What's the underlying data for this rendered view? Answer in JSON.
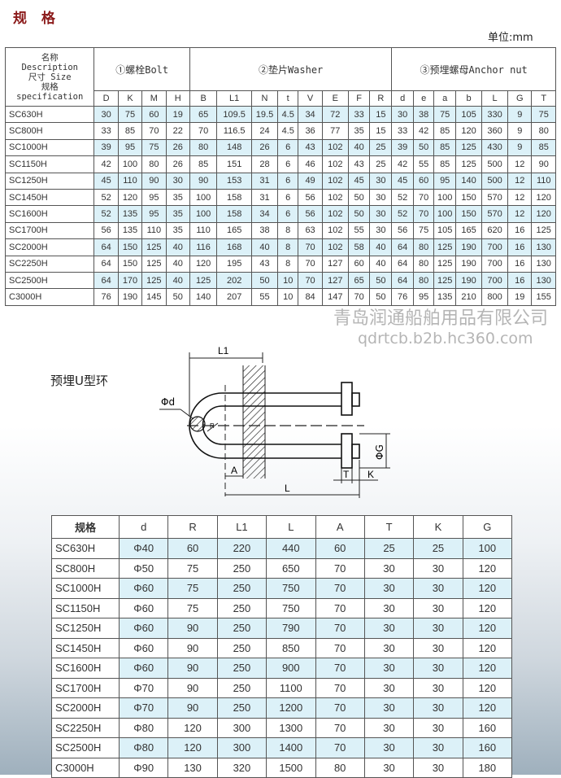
{
  "title": "规 格",
  "unit": "单位:mm",
  "spec_table": {
    "name_header": [
      "名称",
      "Description",
      "尺寸 Size",
      "规格",
      "specification"
    ],
    "groups": [
      {
        "label": "①螺栓Bolt",
        "columns": [
          "D",
          "K",
          "M",
          "H"
        ]
      },
      {
        "label": "②垫片Washer",
        "columns": [
          "B",
          "L1",
          "N",
          "t",
          "V",
          "E",
          "F",
          "R"
        ]
      },
      {
        "label": "③预埋螺母Anchor nut",
        "columns": [
          "d",
          "e",
          "a",
          "b",
          "L",
          "G",
          "T"
        ]
      }
    ],
    "rows": [
      {
        "name": "SC630H",
        "values": [
          "30",
          "75",
          "60",
          "19",
          "65",
          "109.5",
          "19.5",
          "4.5",
          "34",
          "72",
          "33",
          "15",
          "30",
          "38",
          "75",
          "105",
          "330",
          "9",
          "75"
        ]
      },
      {
        "name": "SC800H",
        "values": [
          "33",
          "85",
          "70",
          "22",
          "70",
          "116.5",
          "24",
          "4.5",
          "36",
          "77",
          "35",
          "15",
          "33",
          "42",
          "85",
          "120",
          "360",
          "9",
          "80"
        ]
      },
      {
        "name": "SC1000H",
        "values": [
          "39",
          "95",
          "75",
          "26",
          "80",
          "148",
          "26",
          "6",
          "43",
          "102",
          "40",
          "25",
          "39",
          "50",
          "85",
          "125",
          "430",
          "9",
          "85"
        ]
      },
      {
        "name": "SC1150H",
        "values": [
          "42",
          "100",
          "80",
          "26",
          "85",
          "151",
          "28",
          "6",
          "46",
          "102",
          "43",
          "25",
          "42",
          "55",
          "85",
          "125",
          "500",
          "12",
          "90"
        ]
      },
      {
        "name": "SC1250H",
        "values": [
          "45",
          "110",
          "90",
          "30",
          "90",
          "153",
          "31",
          "6",
          "49",
          "102",
          "45",
          "30",
          "45",
          "60",
          "95",
          "140",
          "500",
          "12",
          "110"
        ]
      },
      {
        "name": "SC1450H",
        "values": [
          "52",
          "120",
          "95",
          "35",
          "100",
          "158",
          "31",
          "6",
          "56",
          "102",
          "50",
          "30",
          "52",
          "70",
          "100",
          "150",
          "570",
          "12",
          "120"
        ]
      },
      {
        "name": "SC1600H",
        "values": [
          "52",
          "135",
          "95",
          "35",
          "100",
          "158",
          "34",
          "6",
          "56",
          "102",
          "50",
          "30",
          "52",
          "70",
          "100",
          "150",
          "570",
          "12",
          "120"
        ]
      },
      {
        "name": "SC1700H",
        "values": [
          "56",
          "135",
          "110",
          "35",
          "110",
          "165",
          "38",
          "8",
          "63",
          "102",
          "55",
          "30",
          "56",
          "75",
          "105",
          "165",
          "620",
          "16",
          "125"
        ]
      },
      {
        "name": "SC2000H",
        "values": [
          "64",
          "150",
          "125",
          "40",
          "116",
          "168",
          "40",
          "8",
          "70",
          "102",
          "58",
          "40",
          "64",
          "80",
          "125",
          "190",
          "700",
          "16",
          "130"
        ]
      },
      {
        "name": "SC2250H",
        "values": [
          "64",
          "150",
          "125",
          "40",
          "120",
          "195",
          "43",
          "8",
          "70",
          "127",
          "60",
          "40",
          "64",
          "80",
          "125",
          "190",
          "700",
          "16",
          "130"
        ]
      },
      {
        "name": "SC2500H",
        "values": [
          "64",
          "170",
          "125",
          "40",
          "125",
          "202",
          "50",
          "10",
          "70",
          "127",
          "65",
          "50",
          "64",
          "80",
          "125",
          "190",
          "700",
          "16",
          "130"
        ]
      },
      {
        "name": "C3000H",
        "values": [
          "76",
          "190",
          "145",
          "50",
          "140",
          "207",
          "55",
          "10",
          "84",
          "147",
          "70",
          "50",
          "76",
          "95",
          "135",
          "210",
          "800",
          "19",
          "155"
        ]
      }
    ]
  },
  "diagram": {
    "label": "预埋U型环",
    "dims": {
      "L1": "L1",
      "d": "Φd",
      "R": "R",
      "G": "ΦG",
      "A": "A",
      "T": "T",
      "K": "K",
      "L": "L"
    }
  },
  "u_table": {
    "headers": [
      "规格",
      "d",
      "R",
      "L1",
      "L",
      "A",
      "T",
      "K",
      "G"
    ],
    "rows": [
      [
        "SC630H",
        "Φ40",
        "60",
        "220",
        "440",
        "60",
        "25",
        "25",
        "100"
      ],
      [
        "SC800H",
        "Φ50",
        "75",
        "250",
        "650",
        "70",
        "30",
        "30",
        "120"
      ],
      [
        "SC1000H",
        "Φ60",
        "75",
        "250",
        "750",
        "70",
        "30",
        "30",
        "120"
      ],
      [
        "SC1150H",
        "Φ60",
        "75",
        "250",
        "750",
        "70",
        "30",
        "30",
        "120"
      ],
      [
        "SC1250H",
        "Φ60",
        "90",
        "250",
        "790",
        "70",
        "30",
        "30",
        "120"
      ],
      [
        "SC1450H",
        "Φ60",
        "90",
        "250",
        "850",
        "70",
        "30",
        "30",
        "120"
      ],
      [
        "SC1600H",
        "Φ60",
        "90",
        "250",
        "900",
        "70",
        "30",
        "30",
        "120"
      ],
      [
        "SC1700H",
        "Φ70",
        "90",
        "250",
        "1100",
        "70",
        "30",
        "30",
        "120"
      ],
      [
        "SC2000H",
        "Φ70",
        "90",
        "250",
        "1200",
        "70",
        "30",
        "30",
        "120"
      ],
      [
        "SC2250H",
        "Φ80",
        "120",
        "300",
        "1300",
        "70",
        "30",
        "30",
        "160"
      ],
      [
        "SC2500H",
        "Φ80",
        "120",
        "300",
        "1400",
        "70",
        "30",
        "30",
        "160"
      ],
      [
        "C3000H",
        "Φ90",
        "130",
        "320",
        "1500",
        "80",
        "30",
        "30",
        "180"
      ]
    ]
  },
  "watermark": {
    "company": "青岛润通船舶用品有限公司",
    "site": "qdrtcb.b2b.hc360.com"
  },
  "colors": {
    "title": "#8b1a1a",
    "highlight_row": "#dcf1f8",
    "border": "#555555"
  }
}
